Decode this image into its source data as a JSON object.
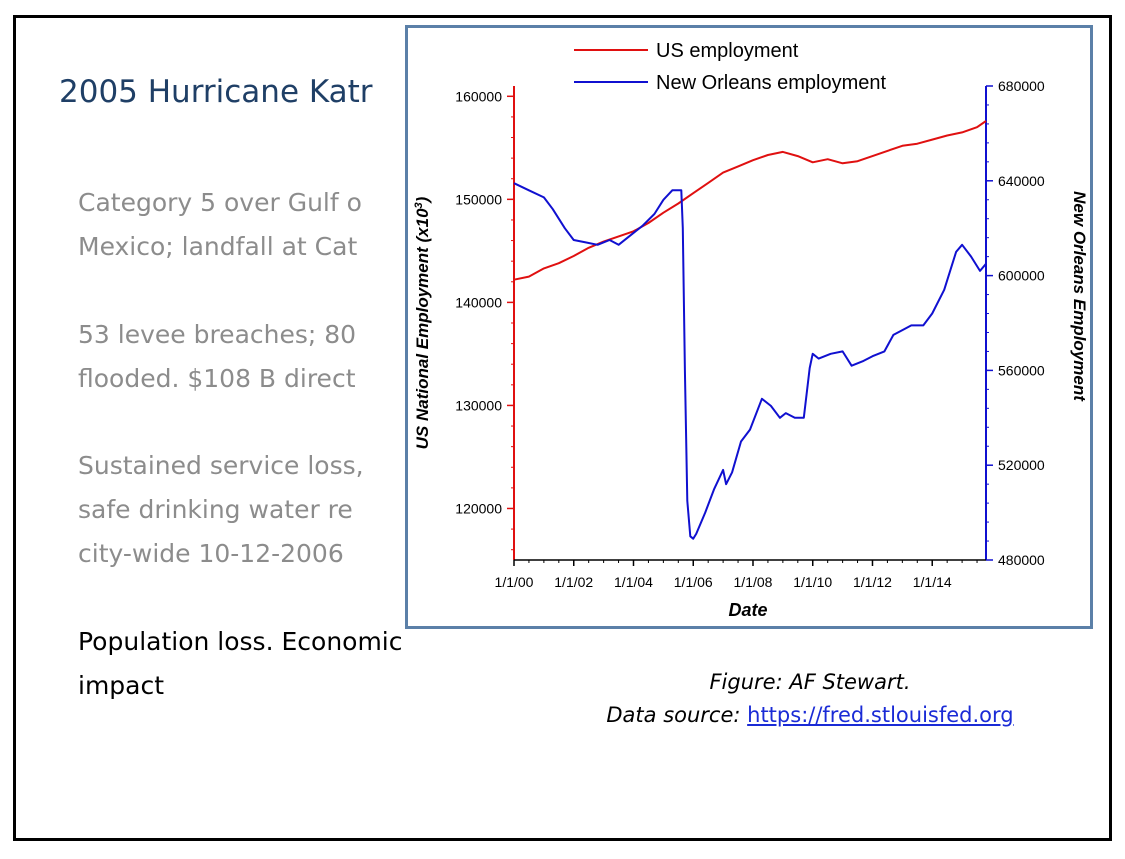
{
  "slide": {
    "title": "2005 Hurricane Katr",
    "bullets": [
      {
        "lines": [
          "Category 5 over Gulf o",
          "Mexico; landfall at Cat"
        ]
      },
      {
        "lines": [
          "53 levee breaches; 80",
          "flooded. $108 B direct"
        ]
      },
      {
        "lines": [
          "Sustained service loss,",
          "safe drinking water re",
          "city-wide 10-12-2006"
        ]
      },
      {
        "lines": [
          "Population loss. Economic",
          "impact"
        ]
      }
    ],
    "caption": {
      "line1": "Figure: AF Stewart.",
      "line2_prefix": "Data source: ",
      "link": "https://fred.stlouisfed.org"
    }
  },
  "chart_data": {
    "type": "line",
    "xlabel": "Date",
    "ylabel_left": "US National Employment (x10",
    "ylabel_left_sup": "3",
    "ylabel_left_close": ")",
    "ylabel_right": "New Orleans Employment",
    "xlim": [
      2000,
      2015.8
    ],
    "ylim_left": [
      115000,
      161000
    ],
    "ylim_right": [
      480000,
      680000
    ],
    "x_ticks": [
      {
        "value": 2000,
        "label": "1/1/00"
      },
      {
        "value": 2002,
        "label": "1/1/02"
      },
      {
        "value": 2004,
        "label": "1/1/04"
      },
      {
        "value": 2006,
        "label": "1/1/06"
      },
      {
        "value": 2008,
        "label": "1/1/08"
      },
      {
        "value": 2010,
        "label": "1/1/10"
      },
      {
        "value": 2012,
        "label": "1/1/12"
      },
      {
        "value": 2014,
        "label": "1/1/14"
      }
    ],
    "y_left_ticks": [
      {
        "value": 120000,
        "label": "120000"
      },
      {
        "value": 130000,
        "label": "130000"
      },
      {
        "value": 140000,
        "label": "140000"
      },
      {
        "value": 150000,
        "label": "150000"
      },
      {
        "value": 160000,
        "label": "160000"
      }
    ],
    "y_right_ticks": [
      {
        "value": 480000,
        "label": "480000"
      },
      {
        "value": 520000,
        "label": "520000"
      },
      {
        "value": 560000,
        "label": "560000"
      },
      {
        "value": 600000,
        "label": "600000"
      },
      {
        "value": 640000,
        "label": "640000"
      },
      {
        "value": 680000,
        "label": "680000"
      }
    ],
    "legend_position": "top",
    "series": [
      {
        "name": "US employment",
        "color": "#e01010",
        "axis": "left",
        "x": [
          2000.0,
          2000.5,
          2001.0,
          2001.5,
          2002.0,
          2002.5,
          2003.0,
          2003.5,
          2004.0,
          2004.5,
          2005.0,
          2005.5,
          2006.0,
          2006.5,
          2007.0,
          2007.5,
          2008.0,
          2008.5,
          2009.0,
          2009.5,
          2010.0,
          2010.5,
          2011.0,
          2011.5,
          2012.0,
          2012.5,
          2013.0,
          2013.5,
          2014.0,
          2014.5,
          2015.0,
          2015.5,
          2015.8
        ],
        "y": [
          142200,
          142500,
          143300,
          143800,
          144500,
          145300,
          145900,
          146400,
          146900,
          147700,
          148700,
          149600,
          150600,
          151600,
          152600,
          153200,
          153800,
          154300,
          154600,
          154200,
          153600,
          153900,
          153500,
          153700,
          154200,
          154700,
          155200,
          155400,
          155800,
          156200,
          156500,
          157000,
          157600
        ]
      },
      {
        "name": "New Orleans employment",
        "color": "#1010d0",
        "axis": "right",
        "x": [
          2000.0,
          2000.5,
          2001.0,
          2001.3,
          2001.7,
          2002.0,
          2002.4,
          2002.8,
          2003.2,
          2003.5,
          2003.9,
          2004.3,
          2004.7,
          2005.0,
          2005.3,
          2005.6,
          2005.65,
          2005.72,
          2005.8,
          2005.9,
          2006.0,
          2006.1,
          2006.4,
          2006.7,
          2007.0,
          2007.1,
          2007.3,
          2007.6,
          2007.9,
          2008.3,
          2008.6,
          2008.9,
          2009.1,
          2009.4,
          2009.7,
          2009.9,
          2010.0,
          2010.2,
          2010.6,
          2011.0,
          2011.3,
          2011.7,
          2012.0,
          2012.4,
          2012.7,
          2013.0,
          2013.3,
          2013.7,
          2014.0,
          2014.4,
          2014.8,
          2015.0,
          2015.3,
          2015.6,
          2015.8
        ],
        "y": [
          639000,
          636000,
          633000,
          628000,
          620000,
          615000,
          614000,
          613000,
          615000,
          613000,
          617000,
          621000,
          626000,
          632000,
          636000,
          636000,
          620000,
          560000,
          505000,
          490000,
          489000,
          491000,
          500000,
          510000,
          518000,
          512000,
          517000,
          530000,
          535000,
          548000,
          545000,
          540000,
          542000,
          540000,
          540000,
          561000,
          567000,
          565000,
          567000,
          568000,
          562000,
          564000,
          566000,
          568000,
          575000,
          577000,
          579000,
          579000,
          584000,
          594000,
          610000,
          613000,
          608000,
          602000,
          605000
        ]
      }
    ]
  }
}
